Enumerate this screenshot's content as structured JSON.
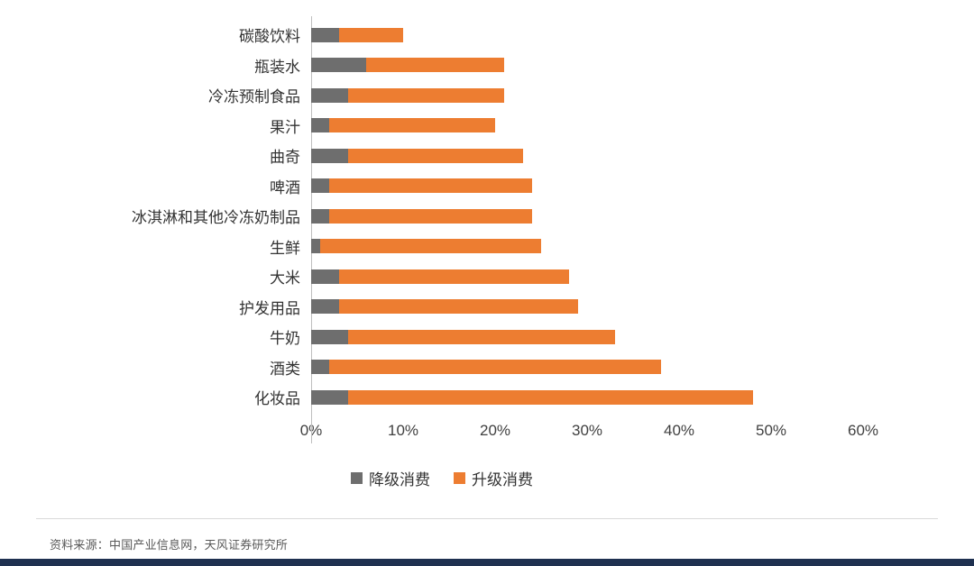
{
  "chart_data": {
    "type": "bar",
    "orientation": "horizontal",
    "stacked": true,
    "title": "",
    "xlabel": "",
    "ylabel": "",
    "x_max": 60,
    "x_ticks": [
      "0%",
      "10%",
      "20%",
      "30%",
      "40%",
      "50%",
      "60%"
    ],
    "grid": false,
    "legend_position": "bottom",
    "categories": [
      "碳酸饮料",
      "瓶装水",
      "冷冻预制食品",
      "果汁",
      "曲奇",
      "啤酒",
      "冰淇淋和其他冷冻奶制品",
      "生鲜",
      "大米",
      "护发用品",
      "牛奶",
      "酒类",
      "化妆品"
    ],
    "series": [
      {
        "name": "降级消费",
        "color": "#6e6e6e",
        "values": [
          3,
          6,
          4,
          2,
          4,
          2,
          2,
          1,
          3,
          3,
          4,
          2,
          4
        ]
      },
      {
        "name": "升级消费",
        "color": "#ed7d31",
        "values": [
          7,
          15,
          17,
          18,
          19,
          22,
          22,
          24,
          25,
          26,
          29,
          36,
          44
        ]
      }
    ]
  },
  "footer": {
    "source": "资料来源：中国产业信息网，天风证券研究所"
  },
  "colors": {
    "downgrade": "#6e6e6e",
    "upgrade": "#ed7d31",
    "axis": "#bfbfbf",
    "bottom_bar": "#1f3150"
  }
}
